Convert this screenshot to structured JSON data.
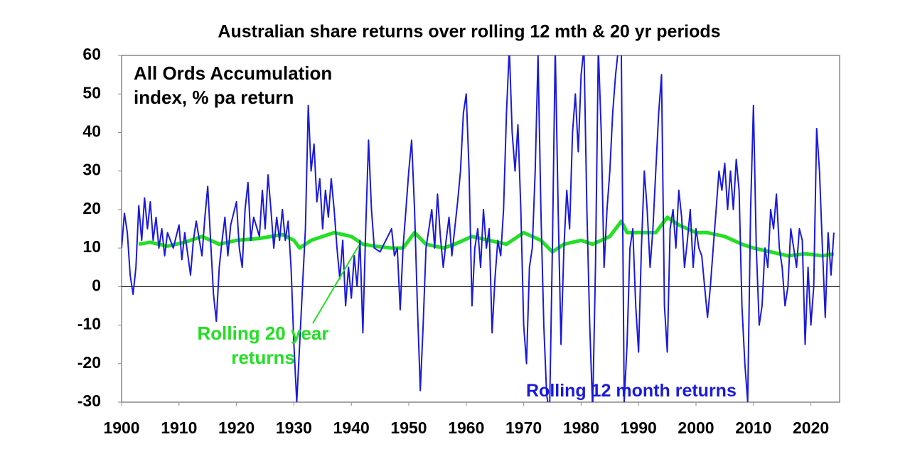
{
  "chart_data": {
    "type": "line",
    "title": "Australian share returns over rolling 12 mth & 20 yr periods",
    "subtitle": "All Ords Accumulation index, % pa return",
    "xlim": [
      1900,
      2025
    ],
    "xticks": [
      1900,
      1910,
      1920,
      1930,
      1940,
      1950,
      1960,
      1970,
      1980,
      1990,
      2000,
      2010,
      2020
    ],
    "ylim": [
      -30,
      60
    ],
    "yticks": [
      -30,
      -20,
      -10,
      0,
      10,
      20,
      30,
      40,
      50,
      60
    ],
    "reference_line": 0,
    "series": [
      {
        "name": "Rolling 12 month returns",
        "color": "#1a1adb",
        "x": [
          1900,
          1900.5,
          1901,
          1901.5,
          1902,
          1902.5,
          1903,
          1903.5,
          1904,
          1904.5,
          1905,
          1905.5,
          1906,
          1906.5,
          1907,
          1907.5,
          1908,
          1909,
          1910,
          1910.5,
          1911,
          1912,
          1912.5,
          1913,
          1914,
          1914.5,
          1915,
          1915.5,
          1916,
          1916.5,
          1917,
          1917.5,
          1918,
          1918.5,
          1919,
          1920,
          1920.5,
          1921,
          1921.5,
          1922,
          1922.5,
          1923,
          1924,
          1924.5,
          1925,
          1925.5,
          1926,
          1926.5,
          1927,
          1927.5,
          1928,
          1928.5,
          1929,
          1929.5,
          1930,
          1930.5,
          1931,
          1931.5,
          1932,
          1932.5,
          1933,
          1933.5,
          1934,
          1934.5,
          1935,
          1935.5,
          1936,
          1936.5,
          1937,
          1937.5,
          1938,
          1938.5,
          1939,
          1939.5,
          1940,
          1940.5,
          1941,
          1941.5,
          1942,
          1942.5,
          1943,
          1943.5,
          1944,
          1945,
          1946,
          1947,
          1947.5,
          1948,
          1948.5,
          1949,
          1949.5,
          1950,
          1950.5,
          1951,
          1951.5,
          1952,
          1952.5,
          1953,
          1953.5,
          1954,
          1954.5,
          1955,
          1955.5,
          1956,
          1956.5,
          1957,
          1957.5,
          1958,
          1958.5,
          1959,
          1959.5,
          1960,
          1960.5,
          1961,
          1961.5,
          1962,
          1962.5,
          1963,
          1963.5,
          1964,
          1964.5,
          1965,
          1965.5,
          1966,
          1966.5,
          1967,
          1967.5,
          1968,
          1968.5,
          1969,
          1969.5,
          1970,
          1970.5,
          1971,
          1971.5,
          1972,
          1972.5,
          1973,
          1973.5,
          1974,
          1974.5,
          1975,
          1975.5,
          1976,
          1976.5,
          1977,
          1977.5,
          1978,
          1978.5,
          1979,
          1979.5,
          1980,
          1980.5,
          1981,
          1981.5,
          1982,
          1982.5,
          1983,
          1983.5,
          1984,
          1984.5,
          1985,
          1985.5,
          1986,
          1986.5,
          1987,
          1987.5,
          1988,
          1988.5,
          1989,
          1989.5,
          1990,
          1990.5,
          1991,
          1991.5,
          1992,
          1992.5,
          1993,
          1993.5,
          1994,
          1994.5,
          1995,
          1995.5,
          1996,
          1996.5,
          1997,
          1997.5,
          1998,
          1998.5,
          1999,
          1999.5,
          2000,
          2000.5,
          2001,
          2001.5,
          2002,
          2002.5,
          2003,
          2003.5,
          2004,
          2004.5,
          2005,
          2005.5,
          2006,
          2006.5,
          2007,
          2007.5,
          2008,
          2008.5,
          2009,
          2009.5,
          2010,
          2010.5,
          2011,
          2011.5,
          2012,
          2012.5,
          2013,
          2013.5,
          2014,
          2014.5,
          2015,
          2015.5,
          2016,
          2016.5,
          2017,
          2017.5,
          2018,
          2018.5,
          2019,
          2019.5,
          2020,
          2020.5,
          2021,
          2021.5,
          2022,
          2022.5,
          2023,
          2023.5,
          2024
        ],
        "values": [
          10,
          19,
          14,
          3,
          -2,
          5,
          21,
          12,
          23,
          15,
          22,
          12,
          18,
          10,
          15,
          8,
          14,
          10,
          16,
          7,
          14,
          3,
          12,
          17,
          8,
          18,
          26,
          12,
          -2,
          -9,
          5,
          12,
          18,
          8,
          16,
          22,
          10,
          5,
          20,
          27,
          12,
          18,
          13,
          25,
          15,
          29,
          20,
          10,
          18,
          12,
          20,
          12,
          17,
          5,
          -15,
          -30,
          -15,
          0,
          15,
          47,
          30,
          37,
          22,
          28,
          15,
          25,
          18,
          28,
          20,
          10,
          2,
          12,
          -5,
          5,
          -3,
          8,
          0,
          12,
          -12,
          15,
          38,
          20,
          10,
          9,
          12,
          15,
          8,
          10,
          -6,
          10,
          20,
          30,
          38,
          20,
          -5,
          -27,
          -10,
          10,
          15,
          20,
          10,
          24,
          13,
          5,
          12,
          18,
          8,
          15,
          22,
          30,
          45,
          50,
          30,
          -5,
          10,
          15,
          5,
          20,
          10,
          15,
          -12,
          2,
          12,
          8,
          20,
          45,
          62,
          40,
          30,
          42,
          20,
          -10,
          -20,
          5,
          10,
          30,
          60,
          20,
          -10,
          -28,
          -33,
          10,
          62,
          20,
          -15,
          10,
          25,
          15,
          40,
          50,
          35,
          55,
          62,
          20,
          -10,
          -32,
          5,
          62,
          40,
          5,
          20,
          30,
          45,
          55,
          62,
          60,
          -30,
          -15,
          10,
          15,
          -5,
          -17,
          10,
          30,
          20,
          5,
          15,
          30,
          45,
          55,
          -5,
          -17,
          15,
          20,
          10,
          25,
          18,
          5,
          12,
          20,
          5,
          15,
          10,
          8,
          0,
          -8,
          0,
          10,
          20,
          30,
          25,
          32,
          20,
          30,
          20,
          33,
          25,
          -5,
          -20,
          -30,
          20,
          47,
          10,
          -10,
          -5,
          10,
          5,
          20,
          15,
          24,
          10,
          5,
          -5,
          0,
          15,
          10,
          5,
          15,
          12,
          -15,
          5,
          -10,
          0,
          41,
          30,
          10,
          -8,
          14,
          3,
          14
        ]
      },
      {
        "name": "Rolling 20 year returns",
        "color": "#22e022",
        "x": [
          1903,
          1905,
          1908,
          1911,
          1914,
          1917,
          1920,
          1924,
          1928,
          1930,
          1931,
          1933,
          1937,
          1940,
          1942,
          1944,
          1947,
          1949,
          1951,
          1953,
          1956,
          1958,
          1961,
          1964,
          1967,
          1970,
          1973,
          1975,
          1977,
          1980,
          1982,
          1985,
          1987,
          1988,
          1991,
          1993,
          1995,
          1997,
          2000,
          2002,
          2005,
          2008,
          2010,
          2013,
          2016,
          2019,
          2022,
          2024
        ],
        "values": [
          11,
          11.5,
          10.5,
          11.5,
          13,
          11,
          12,
          12.5,
          13.5,
          12,
          10,
          12,
          14,
          13,
          11,
          10.5,
          10,
          10,
          14,
          11,
          10,
          11,
          13,
          12,
          11,
          14,
          12,
          9,
          11,
          12,
          11,
          13,
          17,
          14,
          14,
          14,
          18,
          16,
          14,
          14,
          13,
          11,
          10,
          9,
          8,
          8.5,
          8,
          8.5
        ]
      }
    ]
  }
}
